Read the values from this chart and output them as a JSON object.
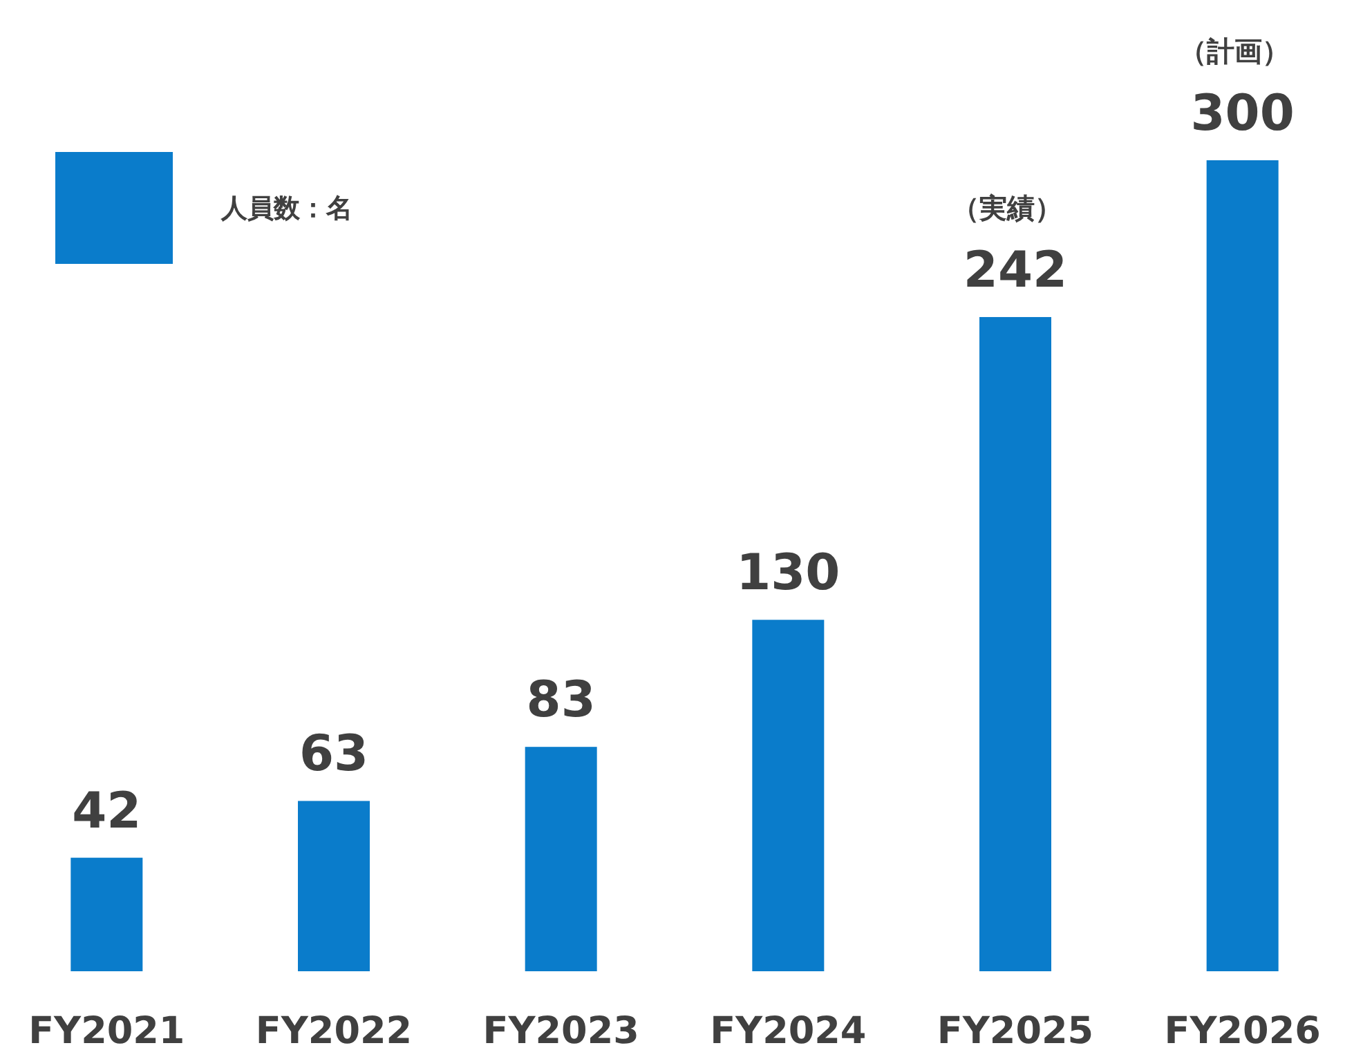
{
  "chart_data": {
    "type": "bar",
    "categories": [
      "FY2021",
      "FY2022",
      "FY2023",
      "FY2024",
      "FY2025",
      "FY2026"
    ],
    "series": [
      {
        "name": "人員数：名",
        "color": "#0a7ccb",
        "values": [
          42,
          63,
          83,
          130,
          242,
          300
        ]
      }
    ],
    "data_labels": true,
    "legend": "top left",
    "annotations": [
      "（実績）",
      "（計画）"
    ]
  }
}
